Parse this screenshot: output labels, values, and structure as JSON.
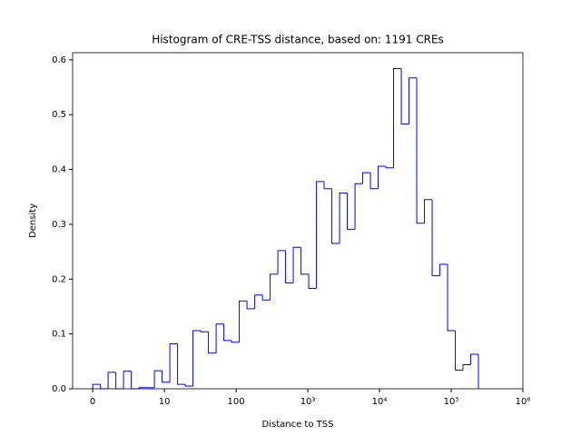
{
  "chart_data": {
    "type": "histogram",
    "title": "Histogram of CRE-TSS distance, based on: 1191 CREs",
    "xlabel": "Distance to TSS",
    "ylabel": "Density",
    "color": "#0000ff",
    "xscale": "symlog",
    "linthresh": 10,
    "xlim": [
      -2.8,
      1000000
    ],
    "ylim": [
      0,
      0.613
    ],
    "xticks": [
      0,
      10,
      100,
      {
        "value": 1000,
        "label": "10³"
      },
      {
        "value": 10000,
        "label": "10⁴"
      },
      {
        "value": 100000,
        "label": "10⁵"
      },
      {
        "value": 1000000,
        "label": "10⁶"
      }
    ],
    "yticks": [
      {
        "value": 0,
        "label": "0.0"
      },
      0.1,
      0.2,
      0.3,
      0.4,
      0.5,
      0.6
    ],
    "bins": [
      0,
      1.08,
      2.15,
      3.23,
      4.3,
      5.38,
      6.46,
      7.53,
      8.61,
      9.68,
      11.91,
      15.26,
      19.55,
      25.05,
      32.1,
      41.11,
      52.67,
      67.48,
      86.45,
      110.8,
      141.9,
      181.8,
      232.9,
      298.4,
      382.3,
      489.8,
      627.5,
      803.9,
      1030,
      1320,
      1690,
      2166,
      2775,
      3555,
      4554,
      5834,
      7474,
      9577,
      12270,
      15720,
      20140,
      25800,
      33050,
      42350,
      54250,
      69500,
      89050,
      114100,
      146100,
      187300,
      239900
    ],
    "values": [
      0.008,
      0,
      0.03,
      0,
      0.032,
      0,
      0.002,
      0.002,
      0.033,
      0.012,
      0.082,
      0.008,
      0.005,
      0.106,
      0.104,
      0.065,
      0.118,
      0.088,
      0.085,
      0.16,
      0.146,
      0.171,
      0.162,
      0.209,
      0.252,
      0.193,
      0.258,
      0.209,
      0.183,
      0.378,
      0.365,
      0.265,
      0.357,
      0.291,
      0.374,
      0.394,
      0.365,
      0.406,
      0.403,
      0.584,
      0.483,
      0.567,
      0.302,
      0.345,
      0.206,
      0.227,
      0.106,
      0.034,
      0.044,
      0.063
    ]
  }
}
